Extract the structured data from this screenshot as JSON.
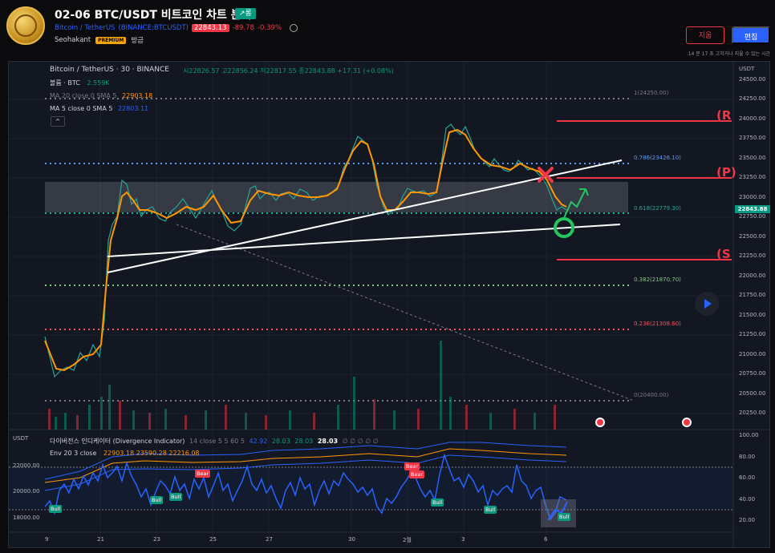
{
  "header": {
    "title": "02-06 BTC/USDT 비트코인 차트 분석",
    "trend_badge": "↗롱",
    "symbol": "Bitcoin / TetherUS",
    "exchange": "(BINANCE:BTCUSDT)",
    "price": "22843.13",
    "change": "-89.78",
    "change_pct": "-0.39%",
    "author": "Seohakant",
    "author_badge": "PREMIUM",
    "time_ago": "방금",
    "delete_label": "지움",
    "edit_label": "편집",
    "edit_note": "14 분 17 초 고치거나 지울 수 있는 시간"
  },
  "chart": {
    "legend_title": "Bitcoin / TetherUS · 30 · BINANCE",
    "ohlc": "시22826.57 고22856.24 저22817.55 종22843.88 +17.31 (+0.08%)",
    "volume": "볼륨 · BTC",
    "volume_value": "2.559K",
    "ma20": "MA 20 close 0 SMA 5",
    "ma20_value": "22903.18",
    "ma5": "MA 5 close 0 SMA 5",
    "ma5_value": "22803.11",
    "collapse": "^",
    "current_price_tag": "22843.88",
    "price_axis": [
      "USDT",
      "24500.00",
      "24250.00",
      "24000.00",
      "23750.00",
      "23500.00",
      "23250.00",
      "23000.00",
      "22750.00",
      "22500.00",
      "22250.00",
      "22000.00",
      "21750.00",
      "21500.00",
      "21250.00",
      "21000.00",
      "20750.00",
      "20500.00",
      "20250.00"
    ],
    "fib_labels": [
      "1(24250.00)",
      "0.786(23426.10)",
      "0.618(22779.30)",
      "0.382(21870.70)",
      "0.236(21308.60)",
      "0(20400.00)"
    ],
    "level_labels": [
      "(R",
      "(P)",
      "(S"
    ],
    "time_axis": [
      "9",
      "21",
      "23",
      "25",
      "27",
      "30",
      "2월",
      "3",
      "6"
    ]
  },
  "indicator": {
    "title": "다이버전스 인디케이터 (Divergence Indicator)",
    "params": "14 close 5 5 60 5",
    "values": [
      "42.92",
      "28.03",
      "28.03"
    ],
    "value_bold": "28.03",
    "zeros": "∅ ∅ ∅ ∅ ∅",
    "env": "Env 20 3 close",
    "env_values": "22903.18 23590.28 22216.08",
    "left_axis": [
      "USDT",
      "22000.00",
      "20000.00",
      "18000.00"
    ],
    "right_axis": [
      "100.00",
      "80.00",
      "60.00",
      "40.00",
      "20.00"
    ],
    "bull_tag": "Bull",
    "bear_tag": "Bear"
  }
}
